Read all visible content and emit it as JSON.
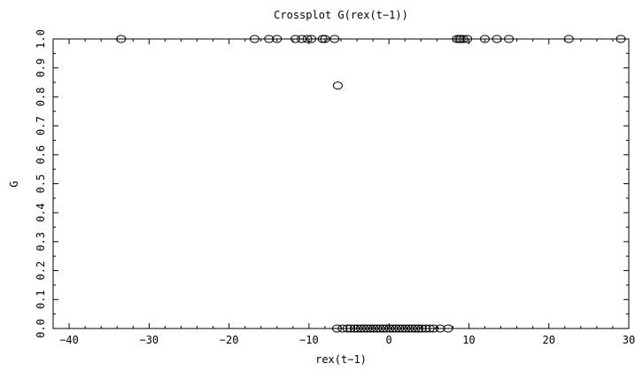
{
  "chart_data": {
    "type": "scatter",
    "title": "Crossplot G(rex(t−1))",
    "xlabel": "rex(t−1)",
    "ylabel": "G",
    "xlim": [
      -42,
      30
    ],
    "ylim": [
      0.0,
      1.0
    ],
    "x_ticks": [
      -40,
      -30,
      -20,
      -10,
      0,
      10,
      20,
      30
    ],
    "x_tick_labels": [
      "−40",
      "−30",
      "−20",
      "−10",
      "0",
      "10",
      "20",
      "30"
    ],
    "y_ticks": [
      0.0,
      0.1,
      0.2,
      0.3,
      0.4,
      0.5,
      0.6,
      0.7,
      0.8,
      0.9,
      1.0
    ],
    "y_tick_labels": [
      "0.0",
      "0.1",
      "0.2",
      "0.3",
      "0.4",
      "0.5",
      "0.6",
      "0.7",
      "0.8",
      "0.9",
      "1.0"
    ],
    "grid": false,
    "marker": "open-circle",
    "series": [
      {
        "points": [
          {
            "x": -33.5,
            "y": 1.0
          },
          {
            "x": -16.8,
            "y": 1.0
          },
          {
            "x": -15.0,
            "y": 1.0
          },
          {
            "x": -14.0,
            "y": 1.0
          },
          {
            "x": -11.7,
            "y": 1.0
          },
          {
            "x": -10.9,
            "y": 1.0
          },
          {
            "x": -10.2,
            "y": 1.0
          },
          {
            "x": -9.7,
            "y": 1.0
          },
          {
            "x": -8.3,
            "y": 1.0
          },
          {
            "x": -8.0,
            "y": 1.0
          },
          {
            "x": -6.8,
            "y": 1.0
          },
          {
            "x": 8.5,
            "y": 1.0
          },
          {
            "x": 8.8,
            "y": 1.0
          },
          {
            "x": 9.0,
            "y": 1.0
          },
          {
            "x": 9.3,
            "y": 1.0
          },
          {
            "x": 9.8,
            "y": 1.0
          },
          {
            "x": 12.0,
            "y": 1.0
          },
          {
            "x": 13.5,
            "y": 1.0
          },
          {
            "x": 15.0,
            "y": 1.0
          },
          {
            "x": 22.5,
            "y": 1.0
          },
          {
            "x": 29.0,
            "y": 1.0
          },
          {
            "x": -6.4,
            "y": 0.839
          },
          {
            "x": -6.5,
            "y": 0.0
          },
          {
            "x": -5.8,
            "y": 0.0
          },
          {
            "x": -5.2,
            "y": 0.0
          },
          {
            "x": -4.8,
            "y": 0.0
          },
          {
            "x": -4.3,
            "y": 0.0
          },
          {
            "x": -3.9,
            "y": 0.0
          },
          {
            "x": -3.5,
            "y": 0.0
          },
          {
            "x": -3.1,
            "y": 0.0
          },
          {
            "x": -2.7,
            "y": 0.0
          },
          {
            "x": -2.3,
            "y": 0.0
          },
          {
            "x": -1.9,
            "y": 0.0
          },
          {
            "x": -1.5,
            "y": 0.0
          },
          {
            "x": -1.1,
            "y": 0.0
          },
          {
            "x": -0.7,
            "y": 0.0
          },
          {
            "x": -0.3,
            "y": 0.0
          },
          {
            "x": 0.1,
            "y": 0.0
          },
          {
            "x": 0.5,
            "y": 0.0
          },
          {
            "x": 0.9,
            "y": 0.0
          },
          {
            "x": 1.3,
            "y": 0.0
          },
          {
            "x": 1.7,
            "y": 0.0
          },
          {
            "x": 2.1,
            "y": 0.0
          },
          {
            "x": 2.5,
            "y": 0.0
          },
          {
            "x": 2.9,
            "y": 0.0
          },
          {
            "x": 3.3,
            "y": 0.0
          },
          {
            "x": 3.7,
            "y": 0.0
          },
          {
            "x": 4.1,
            "y": 0.0
          },
          {
            "x": 4.6,
            "y": 0.0
          },
          {
            "x": 5.1,
            "y": 0.0
          },
          {
            "x": 5.6,
            "y": 0.0
          },
          {
            "x": 6.4,
            "y": 0.0
          },
          {
            "x": 7.4,
            "y": 0.0
          }
        ]
      }
    ]
  }
}
